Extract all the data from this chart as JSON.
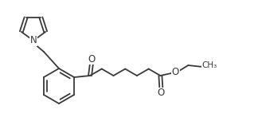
{
  "background_color": "#ffffff",
  "bond_color": "#3a3a3a",
  "line_width": 1.3,
  "figsize": [
    3.24,
    1.62
  ],
  "dpi": 100,
  "font_size": 7.5,
  "O_label": "O",
  "N_label": "N",
  "CH3_label": "CH₃",
  "scale": 1.0
}
